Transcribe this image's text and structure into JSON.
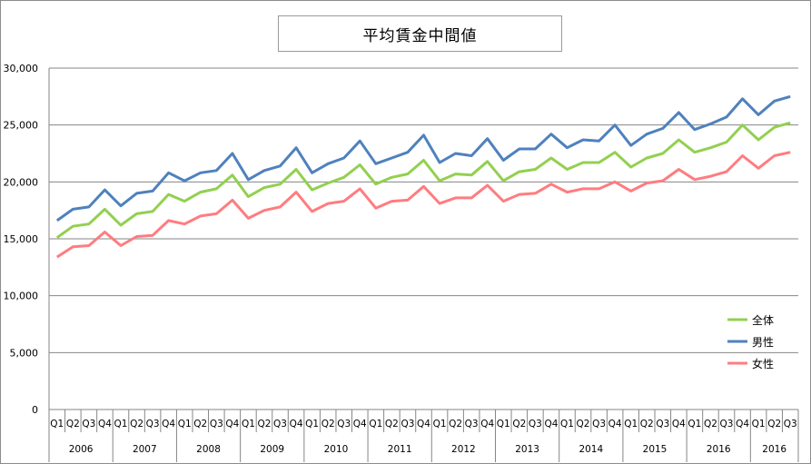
{
  "chart_data": {
    "type": "line",
    "title": "平均賃金中間値",
    "xlabel": "",
    "ylabel": "",
    "ylim": [
      0,
      30000
    ],
    "yticks": [
      "0",
      "5,000",
      "10,000",
      "15,000",
      "20,000",
      "25,000",
      "30,000"
    ],
    "grid": true,
    "legend_position": "right",
    "quarters": [
      "Q1",
      "Q2",
      "Q3",
      "Q4",
      "Q1",
      "Q2",
      "Q3",
      "Q4",
      "Q1",
      "Q2",
      "Q3",
      "Q4",
      "Q1",
      "Q2",
      "Q3",
      "Q4",
      "Q1",
      "Q2",
      "Q3",
      "Q4",
      "Q1",
      "Q2",
      "Q3",
      "Q4",
      "Q1",
      "Q2",
      "Q3",
      "Q4",
      "Q1",
      "Q2",
      "Q3",
      "Q4",
      "Q1",
      "Q2",
      "Q3",
      "Q4",
      "Q1",
      "Q2",
      "Q3",
      "Q4",
      "Q1",
      "Q2",
      "Q3",
      "Q4",
      "Q1",
      "Q2",
      "Q3"
    ],
    "years": [
      {
        "label": "2006",
        "count": 4
      },
      {
        "label": "2007",
        "count": 4
      },
      {
        "label": "2008",
        "count": 4
      },
      {
        "label": "2009",
        "count": 4
      },
      {
        "label": "2010",
        "count": 4
      },
      {
        "label": "2011",
        "count": 4
      },
      {
        "label": "2012",
        "count": 4
      },
      {
        "label": "2013",
        "count": 4
      },
      {
        "label": "2014",
        "count": 4
      },
      {
        "label": "2015",
        "count": 4
      },
      {
        "label": "2016",
        "count": 4
      },
      {
        "label": "2016",
        "count": 3
      }
    ],
    "series": [
      {
        "name": "全体",
        "color": "#92d050",
        "values": [
          15100,
          16100,
          16300,
          17600,
          16200,
          17200,
          17400,
          18900,
          18300,
          19100,
          19400,
          20600,
          18700,
          19500,
          19800,
          21100,
          19300,
          19900,
          20400,
          21500,
          19800,
          20400,
          20700,
          21900,
          20100,
          20700,
          20600,
          21800,
          20100,
          20900,
          21100,
          22100,
          21100,
          21700,
          21700,
          22600,
          21300,
          22100,
          22500,
          23700,
          22600,
          23000,
          23500,
          25000,
          23700,
          24800,
          25200
        ]
      },
      {
        "name": "男性",
        "color": "#4f81bd",
        "values": [
          16600,
          17600,
          17800,
          19300,
          17900,
          19000,
          19200,
          20800,
          20100,
          20800,
          21000,
          22500,
          20200,
          21000,
          21400,
          23000,
          20800,
          21600,
          22100,
          23600,
          21600,
          22100,
          22600,
          24100,
          21700,
          22500,
          22300,
          23800,
          21900,
          22900,
          22900,
          24200,
          23000,
          23700,
          23600,
          25000,
          23200,
          24200,
          24700,
          26100,
          24600,
          25100,
          25700,
          27300,
          25900,
          27100,
          27500
        ]
      },
      {
        "name": "女性",
        "color": "#ff7c80",
        "values": [
          13400,
          14300,
          14400,
          15600,
          14400,
          15200,
          15300,
          16600,
          16300,
          17000,
          17200,
          18400,
          16800,
          17500,
          17800,
          19100,
          17400,
          18100,
          18300,
          19400,
          17700,
          18300,
          18400,
          19600,
          18100,
          18600,
          18600,
          19700,
          18300,
          18900,
          19000,
          19800,
          19100,
          19400,
          19400,
          20000,
          19200,
          19900,
          20100,
          21100,
          20200,
          20500,
          20900,
          22300,
          21200,
          22300,
          22600
        ]
      }
    ]
  }
}
